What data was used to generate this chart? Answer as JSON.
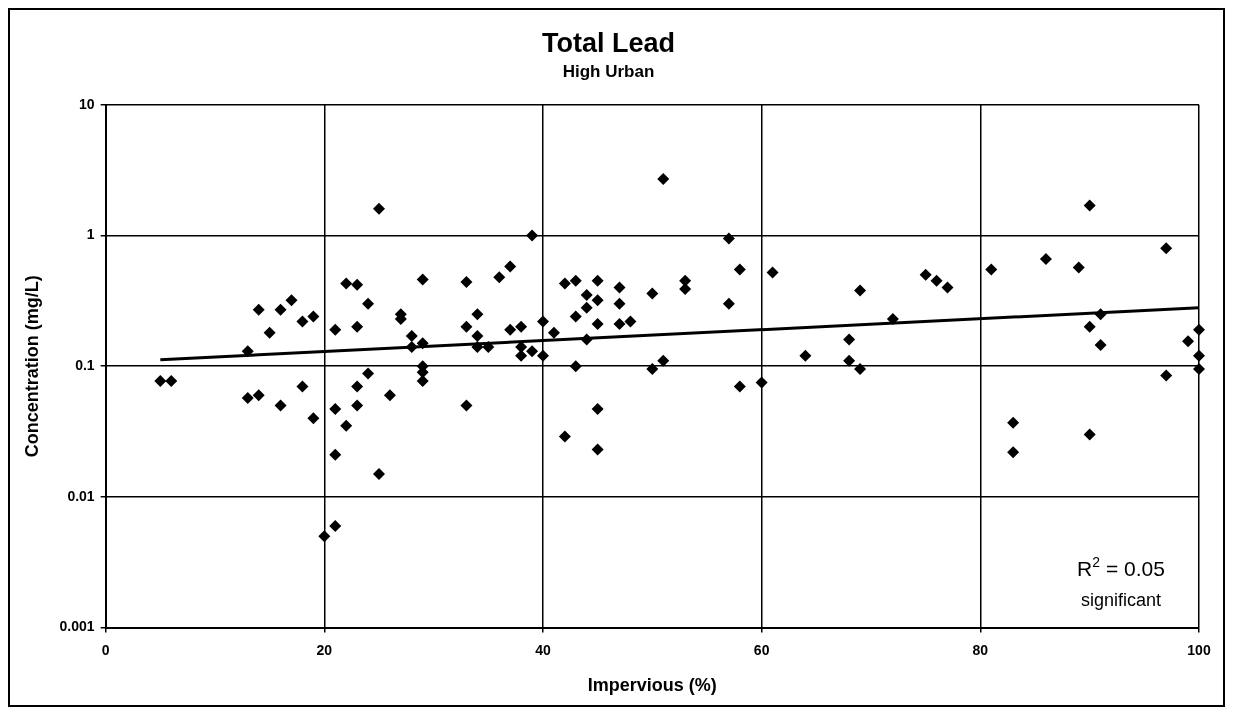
{
  "chart_data": {
    "type": "scatter",
    "title": "Total Lead",
    "subtitle": "High Urban",
    "xlabel": "Impervious (%)",
    "ylabel": "Concentration (mg/L)",
    "xlim": [
      0,
      100
    ],
    "xticks": [
      0,
      20,
      40,
      60,
      80,
      100
    ],
    "ylim": [
      0.001,
      10
    ],
    "yticks": [
      0.001,
      0.01,
      0.1,
      1,
      10
    ],
    "log": "y",
    "grid": true,
    "legend": false,
    "marker": "diamond",
    "annotations": [
      "R$^{2}$ = 0.05",
      "significant"
    ],
    "series": [
      {
        "type": "scatter",
        "color": "#000000",
        "x": [
          5,
          6,
          13,
          13,
          14,
          14,
          15,
          16,
          16,
          17,
          18,
          18,
          19,
          19,
          20,
          21,
          21,
          21,
          21,
          22,
          22,
          23,
          23,
          23,
          23,
          24,
          24,
          25,
          25,
          26,
          27,
          27,
          28,
          28,
          29,
          29,
          29,
          29,
          29,
          33,
          33,
          33,
          34,
          34,
          34,
          35,
          36,
          37,
          37,
          38,
          38,
          38,
          39,
          39,
          40,
          40,
          41,
          42,
          42,
          43,
          43,
          43,
          44,
          44,
          44,
          45,
          45,
          45,
          45,
          45,
          47,
          47,
          47,
          48,
          50,
          50,
          51,
          51,
          53,
          53,
          57,
          57,
          58,
          58,
          60,
          61,
          64,
          68,
          68,
          69,
          69,
          72,
          75,
          76,
          77,
          81,
          83,
          83,
          86,
          89,
          90,
          90,
          90,
          91,
          91,
          97,
          97,
          99,
          100,
          100,
          100
        ],
        "values": [
          0.077,
          0.077,
          0.13,
          0.057,
          0.06,
          0.27,
          0.18,
          0.05,
          0.27,
          0.32,
          0.07,
          0.22,
          0.24,
          0.04,
          0.005,
          0.006,
          0.19,
          0.047,
          0.021,
          0.035,
          0.43,
          0.42,
          0.2,
          0.07,
          0.05,
          0.3,
          0.088,
          1.6,
          0.015,
          0.06,
          0.25,
          0.23,
          0.17,
          0.14,
          0.46,
          0.15,
          0.1,
          0.09,
          0.077,
          0.44,
          0.2,
          0.05,
          0.25,
          0.17,
          0.14,
          0.14,
          0.48,
          0.58,
          0.19,
          0.2,
          0.14,
          0.12,
          1.0,
          0.13,
          0.22,
          0.12,
          0.18,
          0.43,
          0.029,
          0.45,
          0.24,
          0.1,
          0.35,
          0.28,
          0.16,
          0.45,
          0.32,
          0.21,
          0.047,
          0.023,
          0.4,
          0.3,
          0.21,
          0.22,
          0.36,
          0.095,
          2.7,
          0.11,
          0.45,
          0.39,
          0.95,
          0.3,
          0.55,
          0.07,
          0.075,
          0.52,
          0.12,
          0.16,
          0.11,
          0.38,
          0.095,
          0.23,
          0.5,
          0.45,
          0.4,
          0.55,
          0.037,
          0.022,
          0.66,
          0.57,
          1.7,
          0.2,
          0.03,
          0.25,
          0.145,
          0.8,
          0.085,
          0.155,
          0.19,
          0.12,
          0.095
        ]
      },
      {
        "type": "line",
        "marker": "none",
        "color": "#000000",
        "x": [
          5,
          100
        ],
        "values": [
          0.112,
          0.28
        ]
      }
    ]
  }
}
